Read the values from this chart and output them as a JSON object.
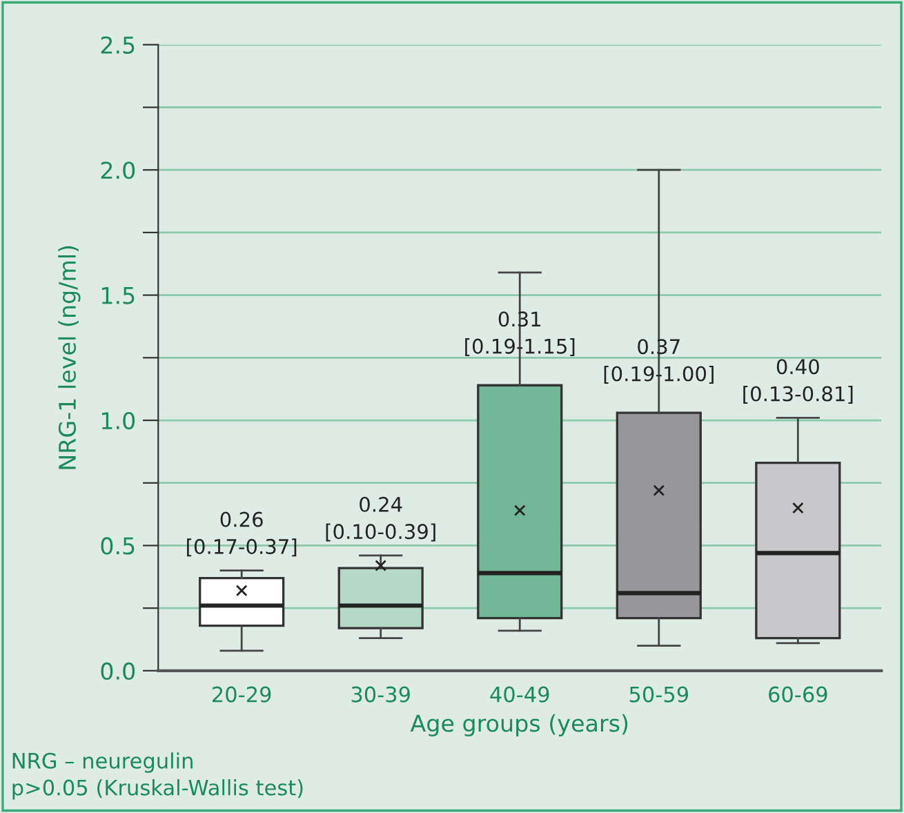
{
  "chart_data": {
    "type": "box",
    "xlabel": "Age groups (years)",
    "ylabel": "NRG-1 level (ng/ml)",
    "categories": [
      "20-29",
      "30-39",
      "40-49",
      "50-59",
      "60-69"
    ],
    "colors": [
      "#ffffff",
      "#b5d8c8",
      "#72b898",
      "#97979b",
      "#c8c8ca"
    ],
    "boxes": [
      {
        "low": 0.08,
        "q1": 0.18,
        "median": 0.26,
        "q3": 0.37,
        "high": 0.4,
        "mean": 0.32
      },
      {
        "low": 0.13,
        "q1": 0.17,
        "median": 0.26,
        "q3": 0.41,
        "high": 0.46,
        "mean": 0.42
      },
      {
        "low": 0.16,
        "q1": 0.21,
        "median": 0.39,
        "q3": 1.14,
        "high": 1.59,
        "mean": 0.64
      },
      {
        "low": 0.1,
        "q1": 0.21,
        "median": 0.31,
        "q3": 1.03,
        "high": 2.0,
        "mean": 0.72
      },
      {
        "low": 0.11,
        "q1": 0.13,
        "median": 0.47,
        "q3": 0.83,
        "high": 1.01,
        "mean": 0.65
      }
    ],
    "marker": "cross",
    "ylim": [
      0,
      2.5
    ],
    "yticks": [
      {
        "value": 0,
        "label": "0.0"
      },
      {
        "value": 0.25,
        "label": null
      },
      0.5,
      {
        "value": 0.75,
        "label": null
      },
      {
        "value": 1,
        "label": "1.0"
      },
      {
        "value": 1.25,
        "label": null
      },
      1.5,
      {
        "value": 1.75,
        "label": null
      },
      {
        "value": 2,
        "label": "2.0"
      },
      {
        "value": 2.25,
        "label": null
      },
      2.5
    ],
    "grid": "y",
    "annotations": [
      "0.26\n[0.17-0.37]",
      "0.24\n[0.10-0.39]",
      "0.31\n[0.19-1.15]",
      "0.37\n[0.19-1.00]",
      "0.40\n[0.13-0.81]",
      "NRG – neuregulin",
      "p>0.05 (Kruskal-Wallis test)"
    ]
  }
}
